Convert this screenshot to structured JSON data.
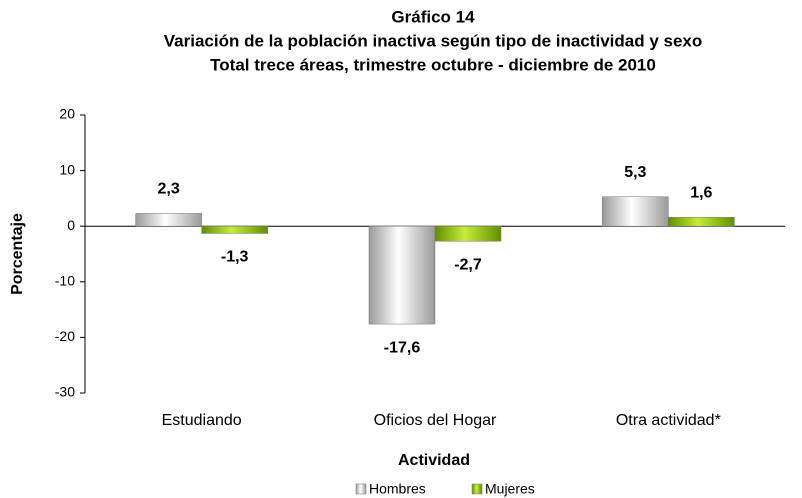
{
  "chart_data": {
    "type": "bar",
    "title": [
      "Gráfico 14",
      "Variación de la población inactiva según tipo de inactividad y sexo",
      "Total trece áreas, trimestre octubre - diciembre de 2010"
    ],
    "x_label": "Actividad",
    "y_label": "Porcentaje",
    "categories": [
      "Estudiando",
      "Oficios del Hogar",
      "Otra actividad*"
    ],
    "series": [
      {
        "name": "Hombres",
        "color": "#9a9a9a",
        "values": [
          2.3,
          -17.6,
          5.3
        ],
        "value_labels": [
          "2,3",
          "-17,6",
          "5,3"
        ]
      },
      {
        "name": "Mujeres",
        "color": "#5f8f00",
        "values": [
          -1.3,
          -2.7,
          1.6
        ],
        "value_labels": [
          "-1,3",
          "-2,7",
          "1,6"
        ]
      }
    ],
    "ylim": [
      -30,
      20
    ],
    "yticks": [
      20,
      10,
      0,
      -10,
      -20,
      -30
    ],
    "grid": false,
    "legend": "bottom"
  }
}
